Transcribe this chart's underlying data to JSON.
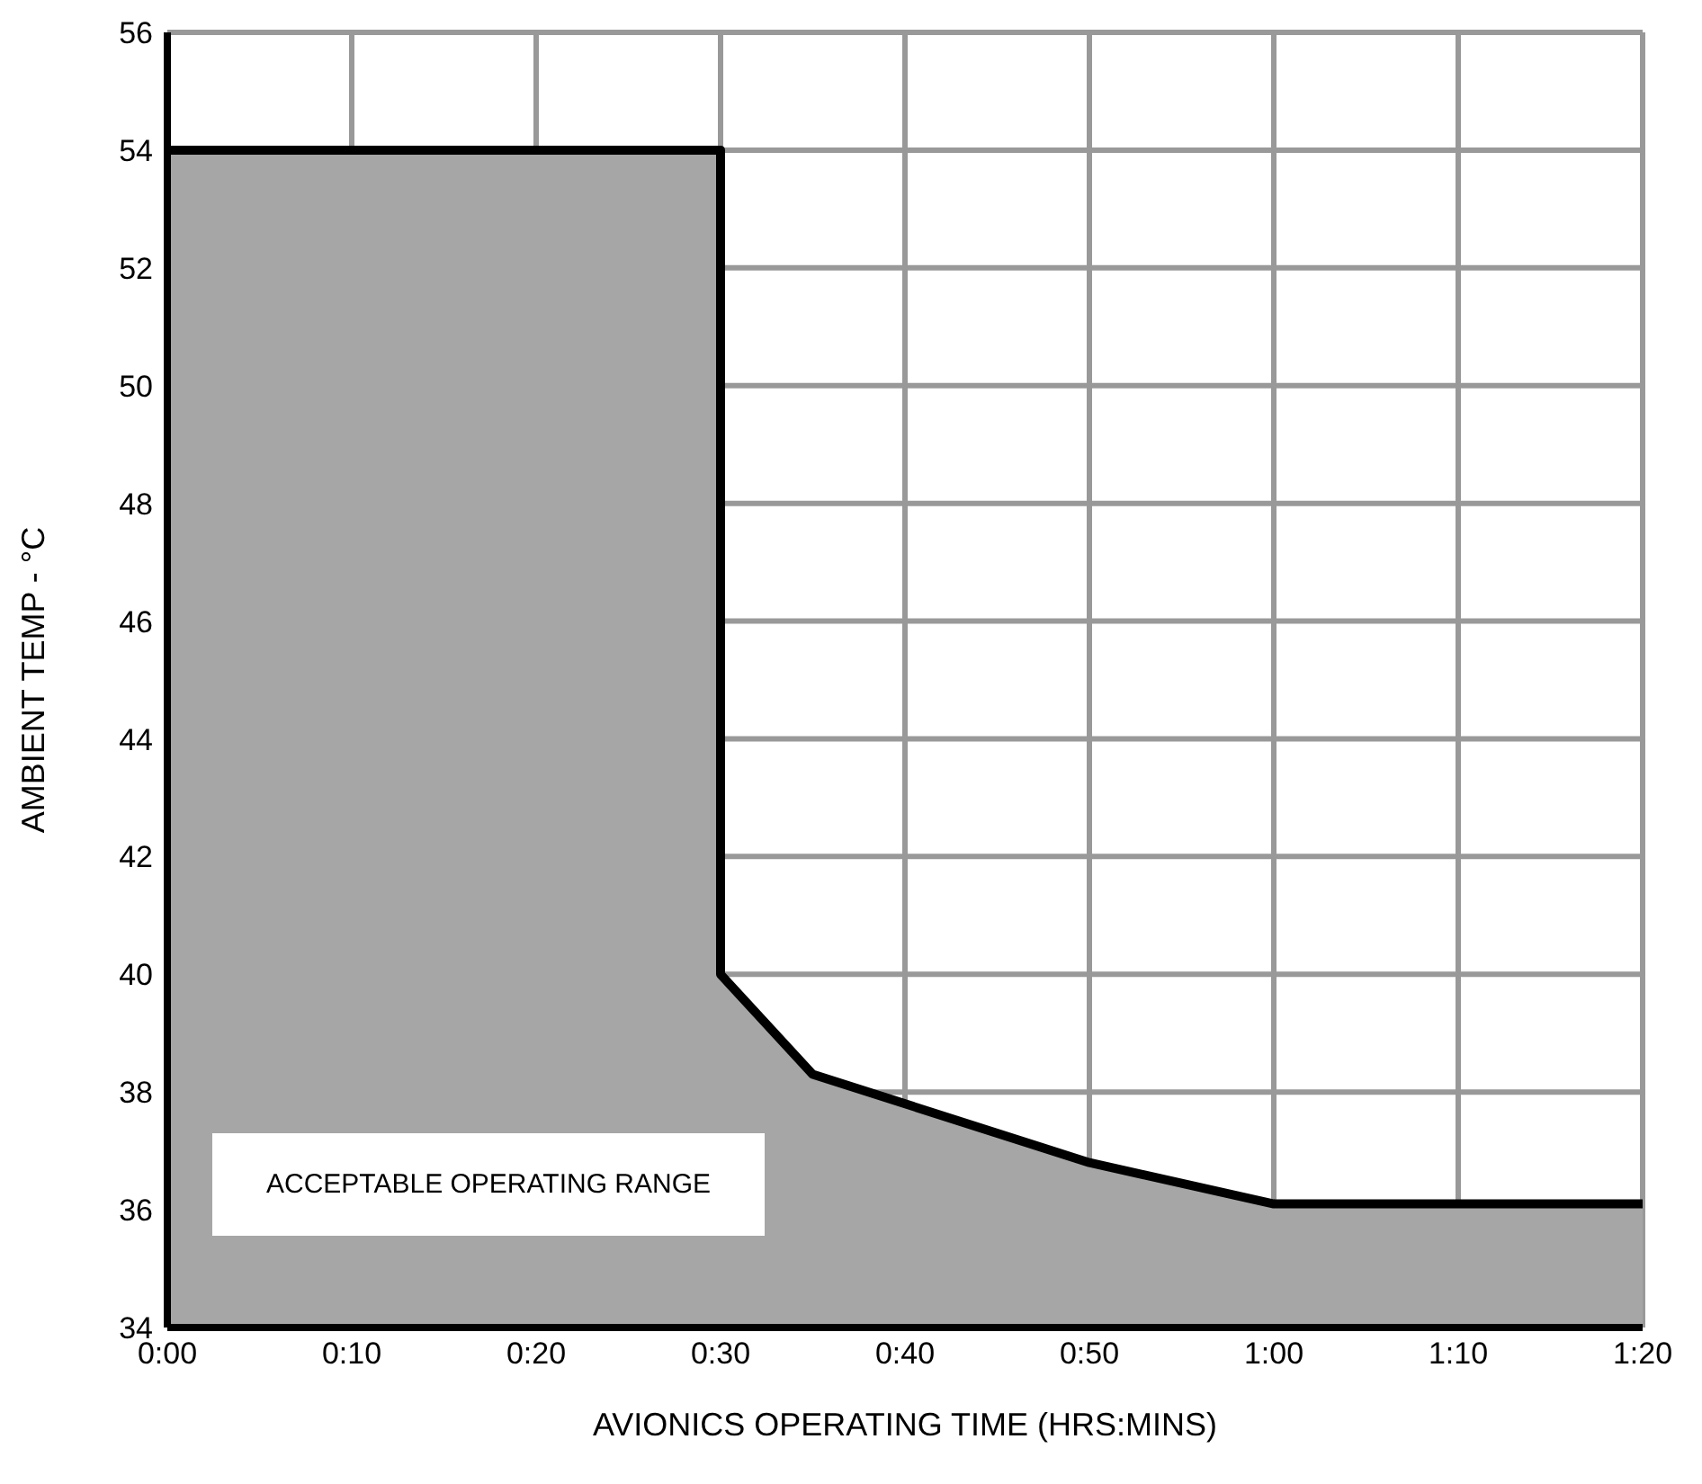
{
  "chart_data": {
    "type": "area",
    "xlabel": "AVIONICS OPERATING TIME (HRS:MINS)",
    "ylabel": "AMBIENT TEMP - °C",
    "x": [
      0,
      30,
      30,
      35,
      50,
      60,
      80
    ],
    "series": [
      {
        "color": "#a6a6a6",
        "values": [
          54,
          54,
          40,
          38.3,
          36.8,
          36.1,
          36.1
        ]
      }
    ],
    "xlim": [
      0,
      80
    ],
    "xticks": [
      {
        "value": 0,
        "label": "0:00"
      },
      {
        "value": 10,
        "label": "0:10"
      },
      {
        "value": 20,
        "label": "0:20"
      },
      {
        "value": 30,
        "label": "0:30"
      },
      {
        "value": 40,
        "label": "0:40"
      },
      {
        "value": 50,
        "label": "0:50"
      },
      {
        "value": 60,
        "label": "1:00"
      },
      {
        "value": 70,
        "label": "1:10"
      },
      {
        "value": 80,
        "label": "1:20"
      }
    ],
    "ylim": [
      34,
      56
    ],
    "yticks": [
      34,
      36,
      38,
      40,
      42,
      44,
      46,
      48,
      50,
      52,
      54,
      56
    ],
    "grid": true,
    "annotations": [
      "ACCEPTABLE OPERATING RANGE"
    ]
  }
}
